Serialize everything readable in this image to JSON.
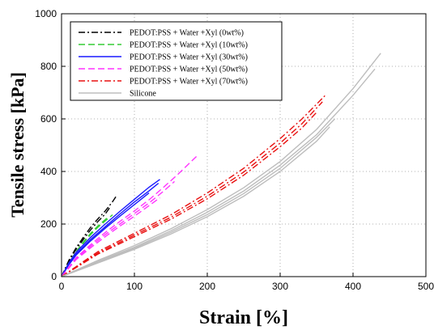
{
  "chart_data": {
    "type": "line",
    "title": "",
    "xlabel": "Strain [%]",
    "ylabel": "Tensile stress [kPa]",
    "xlim": [
      0,
      500
    ],
    "ylim": [
      0,
      1000
    ],
    "xticks": [
      "0",
      "100",
      "200",
      "300",
      "400",
      "500"
    ],
    "yticks": [
      "0",
      "200",
      "400",
      "600",
      "800",
      "1000"
    ],
    "grid": "dotted",
    "legend_position": "top-left",
    "series": [
      {
        "name": "PEDOT:PSS + Water +Xyl (0wt%)",
        "color": "#000000",
        "dash": "dash-dot",
        "replicates": [
          {
            "x": [
              0,
              10,
              20,
              30,
              40,
              50,
              60,
              70,
              76
            ],
            "y": [
              0,
              62,
              110,
              150,
              188,
              220,
              250,
              285,
              310
            ]
          },
          {
            "x": [
              0,
              10,
              20,
              30,
              40,
              50,
              60,
              66
            ],
            "y": [
              0,
              58,
              104,
              142,
              178,
              210,
              238,
              262
            ]
          }
        ]
      },
      {
        "name": "PEDOT:PSS + Water +Xyl (10wt%)",
        "color": "#33cc33",
        "dash": "dash",
        "replicates": [
          {
            "x": [
              0,
              10,
              20,
              30,
              40,
              50,
              60,
              65
            ],
            "y": [
              0,
              52,
              95,
              132,
              165,
              193,
              217,
              230
            ]
          },
          {
            "x": [
              0,
              10,
              20,
              30,
              40,
              50,
              60,
              70
            ],
            "y": [
              0,
              50,
              92,
              128,
              160,
              188,
              212,
              235
            ]
          }
        ]
      },
      {
        "name": "PEDOT:PSS + Water +Xyl (30wt%)",
        "color": "#1a1aff",
        "dash": "solid",
        "replicates": [
          {
            "x": [
              0,
              10,
              20,
              40,
              60,
              80,
              100,
              120,
              135
            ],
            "y": [
              0,
              52,
              92,
              150,
              200,
              248,
              294,
              340,
              370
            ]
          },
          {
            "x": [
              0,
              10,
              20,
              40,
              60,
              80,
              100,
              120,
              133
            ],
            "y": [
              0,
              48,
              86,
              142,
              190,
              238,
              284,
              326,
              355
            ]
          },
          {
            "x": [
              0,
              10,
              20,
              40,
              60,
              80,
              100,
              120
            ],
            "y": [
              0,
              45,
              82,
              136,
              184,
              230,
              274,
              318
            ]
          }
        ]
      },
      {
        "name": "PEDOT:PSS + Water +Xyl (50wt%)",
        "color": "#ff33ff",
        "dash": "dash",
        "replicates": [
          {
            "x": [
              0,
              20,
              40,
              60,
              80,
              100,
              120,
              140,
              160,
              188
            ],
            "y": [
              0,
              72,
              122,
              168,
              210,
              250,
              292,
              340,
              390,
              465
            ]
          },
          {
            "x": [
              0,
              20,
              40,
              60,
              80,
              100,
              120,
              140,
              155
            ],
            "y": [
              0,
              68,
              116,
              160,
              200,
              240,
              280,
              325,
              362
            ]
          },
          {
            "x": [
              0,
              20,
              40,
              60,
              80,
              100,
              120,
              135
            ],
            "y": [
              0,
              65,
              110,
              152,
              192,
              230,
              270,
              300
            ]
          }
        ]
      },
      {
        "name": "PEDOT:PSS + Water +Xyl (70wt%)",
        "color": "#e81010",
        "dash": "dash-dot",
        "replicates": [
          {
            "x": [
              0,
              50,
              100,
              150,
              200,
              250,
              300,
              330,
              362
            ],
            "y": [
              0,
              95,
              165,
              235,
              318,
              412,
              525,
              600,
              690
            ]
          },
          {
            "x": [
              0,
              50,
              100,
              150,
              200,
              250,
              300,
              330,
              358
            ],
            "y": [
              0,
              90,
              158,
              226,
              306,
              398,
              508,
              582,
              665
            ]
          },
          {
            "x": [
              0,
              50,
              100,
              150,
              200,
              250,
              300,
              330,
              350
            ],
            "y": [
              0,
              86,
              152,
              218,
              296,
              386,
              494,
              566,
              625
            ]
          }
        ]
      },
      {
        "name": "Silicone",
        "color": "#bdbdbd",
        "dash": "solid",
        "replicates": [
          {
            "x": [
              0,
              50,
              100,
              150,
              200,
              250,
              300,
              350,
              400,
              438
            ],
            "y": [
              0,
              62,
              118,
              182,
              255,
              338,
              438,
              560,
              715,
              850
            ]
          },
          {
            "x": [
              0,
              50,
              100,
              150,
              200,
              250,
              300,
              350,
              400,
              430
            ],
            "y": [
              0,
              58,
              112,
              174,
              245,
              326,
              424,
              540,
              690,
              790
            ]
          },
          {
            "x": [
              0,
              50,
              100,
              150,
              200,
              250,
              300,
              350,
              375
            ],
            "y": [
              0,
              55,
              108,
              168,
              236,
              316,
              412,
              530,
              600
            ]
          },
          {
            "x": [
              0,
              50,
              100,
              150,
              200,
              250,
              300,
              350,
              368
            ],
            "y": [
              0,
              52,
              104,
              162,
              228,
              306,
              400,
              515,
              570
            ]
          }
        ]
      }
    ]
  }
}
